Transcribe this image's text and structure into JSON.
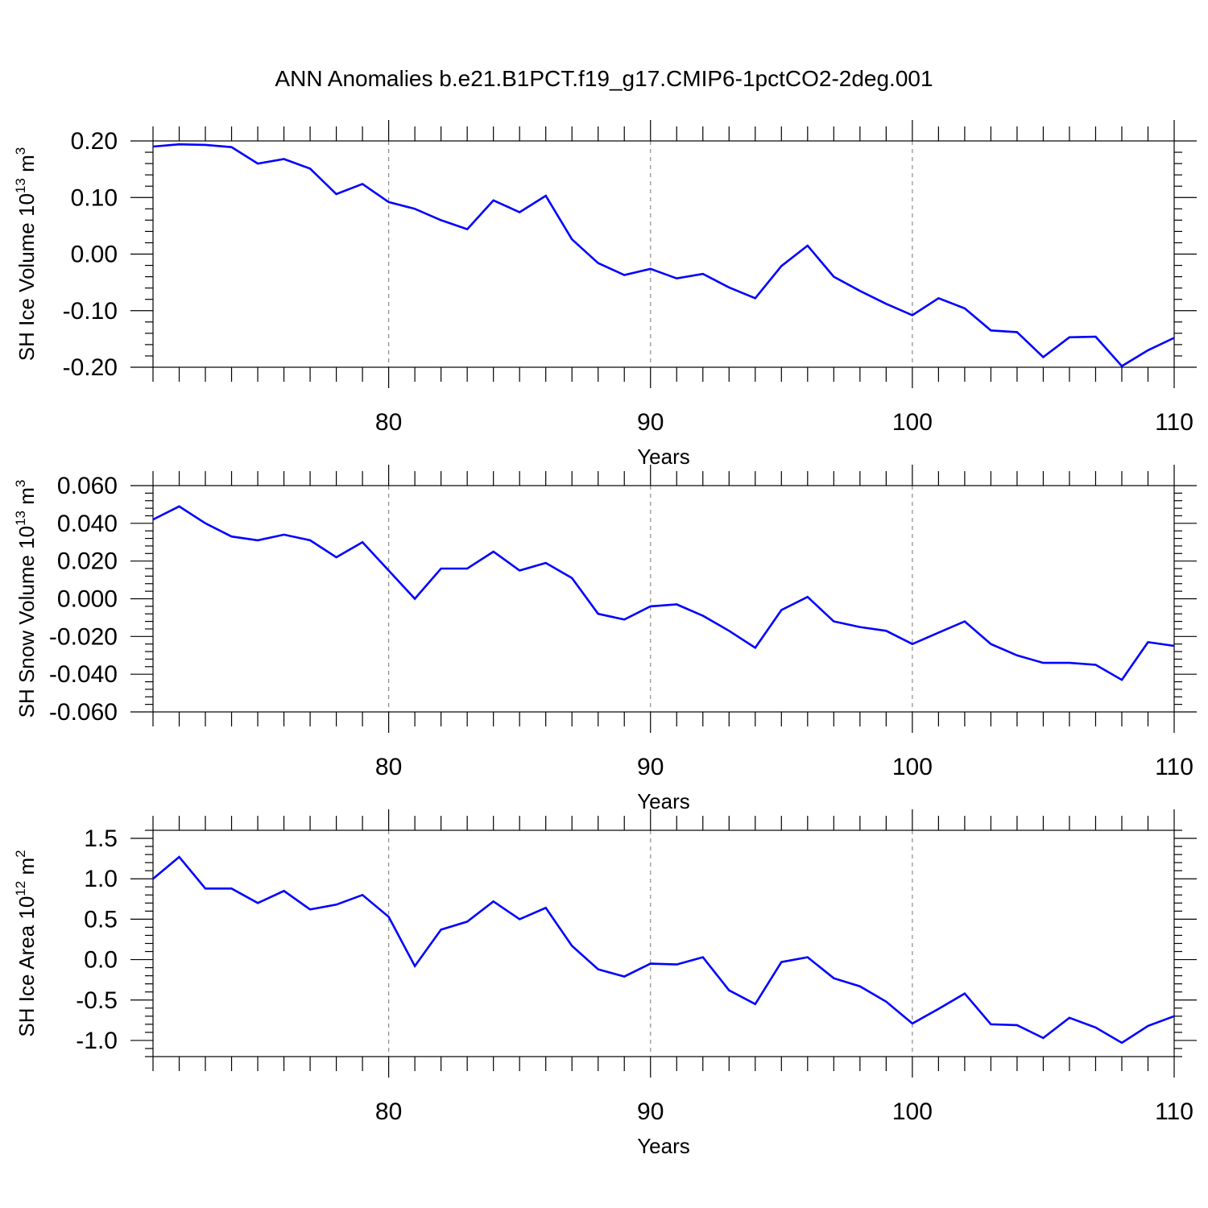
{
  "title": "ANN Anomalies b.e21.B1PCT.f19_g17.CMIP6-1pctCO2-2deg.001",
  "colors": {
    "series": "#0000ff",
    "axis": "#000000",
    "grid": "#8c8c8c"
  },
  "chart_data": [
    {
      "type": "line",
      "ylabel": {
        "main": "SH Ice Volume 10",
        "sup": "13",
        "unit": " m",
        "unit_sup": "3"
      },
      "xlabel": "Years",
      "xlim": [
        71,
        110
      ],
      "ylim": [
        -0.2,
        0.2
      ],
      "xticks": [
        80,
        90,
        100,
        110
      ],
      "yticks": [
        -0.2,
        -0.1,
        0.0,
        0.1,
        0.2
      ],
      "ytick_labels": [
        "-0.20",
        "-0.10",
        "0.00",
        "0.10",
        "0.20"
      ],
      "x": [
        71,
        72,
        73,
        74,
        75,
        76,
        77,
        78,
        79,
        80,
        81,
        82,
        83,
        84,
        85,
        86,
        87,
        88,
        89,
        90,
        91,
        92,
        93,
        94,
        95,
        96,
        97,
        98,
        99,
        100,
        101,
        102,
        103,
        104,
        105,
        106,
        107,
        108,
        109,
        110
      ],
      "values": [
        0.19,
        0.194,
        0.193,
        0.189,
        0.16,
        0.168,
        0.151,
        0.106,
        0.124,
        0.092,
        0.08,
        0.06,
        0.044,
        0.095,
        0.074,
        0.103,
        0.026,
        -0.016,
        -0.037,
        -0.026,
        -0.043,
        -0.035,
        -0.059,
        -0.078,
        -0.021,
        0.015,
        -0.04,
        -0.065,
        -0.088,
        -0.108,
        -0.078,
        -0.096,
        -0.135,
        -0.138,
        -0.182,
        -0.147,
        -0.146,
        -0.198,
        -0.17,
        -0.148
      ]
    },
    {
      "type": "line",
      "ylabel": {
        "main": "SH Snow Volume 10",
        "sup": "13",
        "unit": " m",
        "unit_sup": "3"
      },
      "xlabel": "Years",
      "xlim": [
        71,
        110
      ],
      "ylim": [
        -0.06,
        0.06
      ],
      "xticks": [
        80,
        90,
        100,
        110
      ],
      "yticks": [
        -0.06,
        -0.04,
        -0.02,
        0.0,
        0.02,
        0.04,
        0.06
      ],
      "ytick_labels": [
        "-0.060",
        "-0.040",
        "-0.020",
        "0.000",
        "0.020",
        "0.040",
        "0.060"
      ],
      "x": [
        71,
        72,
        73,
        74,
        75,
        76,
        77,
        78,
        79,
        80,
        81,
        82,
        83,
        84,
        85,
        86,
        87,
        88,
        89,
        90,
        91,
        92,
        93,
        94,
        95,
        96,
        97,
        98,
        99,
        100,
        101,
        102,
        103,
        104,
        105,
        106,
        107,
        108,
        109,
        110
      ],
      "values": [
        0.042,
        0.049,
        0.04,
        0.033,
        0.031,
        0.034,
        0.031,
        0.022,
        0.03,
        0.015,
        0.0,
        0.016,
        0.016,
        0.025,
        0.015,
        0.019,
        0.011,
        -0.008,
        -0.011,
        -0.004,
        -0.003,
        -0.009,
        -0.017,
        -0.026,
        -0.006,
        0.001,
        -0.012,
        -0.015,
        -0.017,
        -0.024,
        -0.018,
        -0.012,
        -0.024,
        -0.03,
        -0.034,
        -0.034,
        -0.035,
        -0.043,
        -0.023,
        -0.025
      ]
    },
    {
      "type": "line",
      "ylabel": {
        "main": "SH Ice Area 10",
        "sup": "12",
        "unit": " m",
        "unit_sup": "2"
      },
      "xlabel": "Years",
      "xlim": [
        71,
        110
      ],
      "ylim": [
        -1.2,
        1.6
      ],
      "xticks": [
        80,
        90,
        100,
        110
      ],
      "yticks": [
        -1.0,
        -0.5,
        0.0,
        0.5,
        1.0,
        1.5
      ],
      "ytick_labels": [
        "-1.0",
        "-0.5",
        "0.0",
        "0.5",
        "1.0",
        "1.5"
      ],
      "x": [
        71,
        72,
        73,
        74,
        75,
        76,
        77,
        78,
        79,
        80,
        81,
        82,
        83,
        84,
        85,
        86,
        87,
        88,
        89,
        90,
        91,
        92,
        93,
        94,
        95,
        96,
        97,
        98,
        99,
        100,
        101,
        102,
        103,
        104,
        105,
        106,
        107,
        108,
        109,
        110
      ],
      "values": [
        1.0,
        1.27,
        0.88,
        0.88,
        0.7,
        0.85,
        0.62,
        0.68,
        0.8,
        0.53,
        -0.08,
        0.37,
        0.47,
        0.72,
        0.5,
        0.64,
        0.17,
        -0.12,
        -0.21,
        -0.05,
        -0.06,
        0.03,
        -0.38,
        -0.55,
        -0.03,
        0.03,
        -0.23,
        -0.33,
        -0.52,
        -0.79,
        -0.61,
        -0.42,
        -0.8,
        -0.81,
        -0.97,
        -0.72,
        -0.84,
        -1.03,
        -0.82,
        -0.7
      ]
    }
  ]
}
